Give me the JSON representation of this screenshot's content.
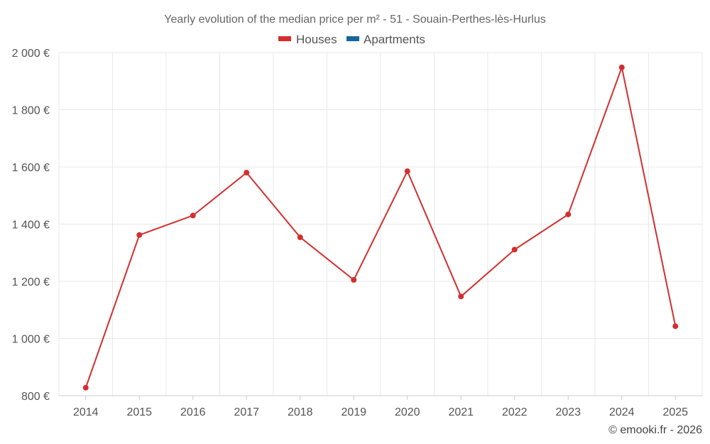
{
  "chart_data": {
    "type": "line",
    "title": "Yearly evolution of the median price per m² - 51 - Souain-Perthes-lès-Hurlus",
    "xlabel": "",
    "ylabel": "",
    "categories": [
      "2014",
      "2015",
      "2016",
      "2017",
      "2018",
      "2019",
      "2020",
      "2021",
      "2022",
      "2023",
      "2024",
      "2025"
    ],
    "y_ticks": [
      800,
      1000,
      1200,
      1400,
      1600,
      1800,
      2000
    ],
    "y_tick_labels": [
      "800 €",
      "1 000 €",
      "1 200 €",
      "1 400 €",
      "1 600 €",
      "1 800 €",
      "2 000 €"
    ],
    "ylim": [
      800,
      2000
    ],
    "grid": true,
    "legend_position": "top-center",
    "series": [
      {
        "name": "Houses",
        "color": "#d32f2f",
        "values": [
          828,
          1362,
          1430,
          1580,
          1354,
          1205,
          1585,
          1147,
          1311,
          1434,
          1948,
          1043
        ]
      },
      {
        "name": "Apartments",
        "color": "#1565a0",
        "values": [
          null,
          null,
          null,
          null,
          null,
          null,
          null,
          null,
          null,
          null,
          null,
          null
        ]
      }
    ],
    "credit": "© emooki.fr - 2026"
  }
}
